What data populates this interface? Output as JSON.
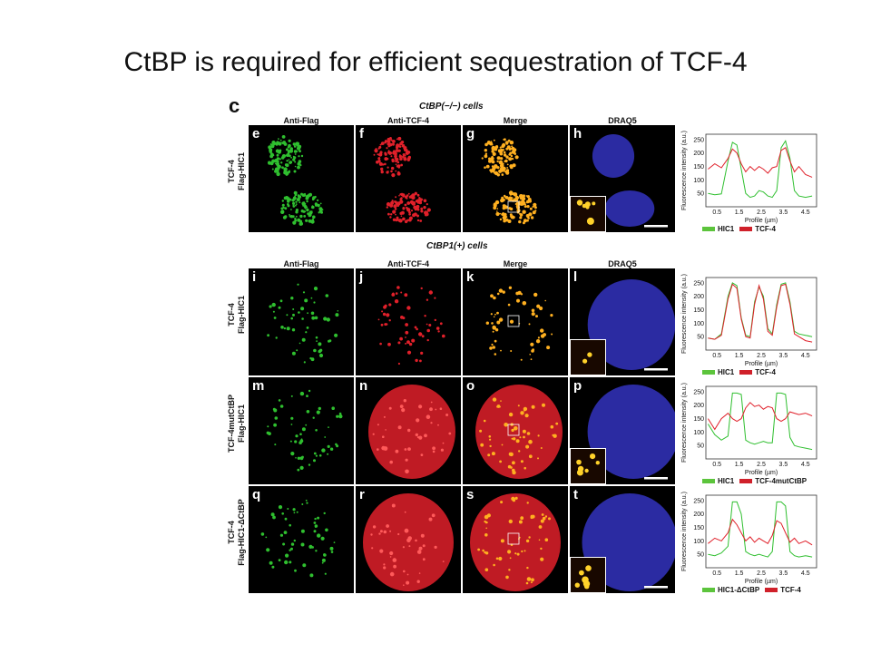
{
  "slide": {
    "title": "CtBP is required for efficient sequestration of TCF-4"
  },
  "figure": {
    "panel_label": "c",
    "sections": [
      {
        "title": "CtBP(−/−) cells",
        "column_headers": [
          "Anti-Flag",
          "Anti-TCF-4",
          "Merge",
          "DRAQ5"
        ]
      },
      {
        "title": "CtBP1(+) cells",
        "column_headers": [
          "Anti-Flag",
          "Anti-TCF-4",
          "Merge",
          "DRAQ5"
        ]
      }
    ],
    "rows": [
      {
        "label_line1": "TCF-4",
        "label_line2": "Flag-HIC1",
        "panels": [
          "e",
          "f",
          "g",
          "h"
        ],
        "legend": [
          "HIC1",
          "TCF-4"
        ]
      },
      {
        "label_line1": "TCF-4",
        "label_line2": "Flag-HIC1",
        "panels": [
          "i",
          "j",
          "k",
          "l"
        ],
        "legend": [
          "HIC1",
          "TCF-4"
        ]
      },
      {
        "label_line1": "TCF-4mutCtBP",
        "label_line2": "Flag-HIC1",
        "panels": [
          "m",
          "n",
          "o",
          "p"
        ],
        "legend": [
          "HIC1",
          "TCF-4mutCtBP"
        ]
      },
      {
        "label_line1": "TCF-4",
        "label_line2": "Flag-HIC1-ΔCtBP",
        "panels": [
          "q",
          "r",
          "s",
          "t"
        ],
        "legend": [
          "HIC1-ΔCtBP",
          "TCF-4"
        ]
      }
    ],
    "plot_axes": {
      "ylabel": "Fluorescence intensity (a.u.)",
      "xlabel": "Profile (µm)",
      "yticks": [
        "250",
        "200",
        "150",
        "100",
        "50"
      ],
      "xticks": [
        "0.5",
        "1.5",
        "2.5",
        "3.5",
        "4.5"
      ]
    },
    "colors": {
      "green_channel": "#2fbf2f",
      "red_channel": "#e0202a",
      "merge_channel": "#ffb020",
      "draq5_channel": "#3a3ad8",
      "green_legend": "#5cc43c",
      "red_legend": "#d0202a"
    }
  },
  "chart_data": [
    {
      "type": "line",
      "xlabel": "Profile (µm)",
      "ylabel": "Fluorescence intensity (a.u.)",
      "xlim": [
        0,
        5
      ],
      "ylim": [
        0,
        270
      ],
      "x": [
        0.1,
        0.4,
        0.7,
        1.0,
        1.2,
        1.4,
        1.6,
        1.8,
        2.0,
        2.2,
        2.4,
        2.6,
        2.8,
        3.0,
        3.2,
        3.4,
        3.6,
        3.8,
        4.0,
        4.2,
        4.5,
        4.8
      ],
      "series": [
        {
          "name": "HIC1",
          "color": "green",
          "values": [
            50,
            45,
            48,
            170,
            240,
            230,
            140,
            50,
            35,
            40,
            60,
            55,
            40,
            35,
            60,
            220,
            245,
            180,
            60,
            40,
            35,
            40
          ]
        },
        {
          "name": "TCF-4",
          "color": "red",
          "values": [
            140,
            160,
            145,
            180,
            215,
            200,
            160,
            130,
            150,
            135,
            150,
            140,
            125,
            145,
            150,
            210,
            220,
            170,
            130,
            150,
            120,
            110
          ]
        }
      ]
    },
    {
      "type": "line",
      "xlabel": "Profile (µm)",
      "ylabel": "Fluorescence intensity (a.u.)",
      "xlim": [
        0,
        5
      ],
      "ylim": [
        0,
        270
      ],
      "x": [
        0.1,
        0.4,
        0.7,
        1.0,
        1.2,
        1.4,
        1.6,
        1.8,
        2.0,
        2.2,
        2.4,
        2.6,
        2.8,
        3.0,
        3.2,
        3.4,
        3.6,
        3.8,
        4.0,
        4.2,
        4.5,
        4.8
      ],
      "series": [
        {
          "name": "HIC1",
          "color": "green",
          "values": [
            45,
            40,
            60,
            200,
            250,
            240,
            120,
            55,
            50,
            180,
            235,
            200,
            80,
            60,
            170,
            245,
            250,
            180,
            70,
            60,
            55,
            50
          ]
        },
        {
          "name": "TCF-4",
          "color": "red",
          "values": [
            45,
            40,
            55,
            190,
            245,
            230,
            115,
            50,
            45,
            170,
            240,
            190,
            70,
            55,
            160,
            240,
            245,
            170,
            60,
            50,
            35,
            30
          ]
        }
      ]
    },
    {
      "type": "line",
      "xlabel": "Profile (µm)",
      "ylabel": "Fluorescence intensity (a.u.)",
      "xlim": [
        0,
        5
      ],
      "ylim": [
        0,
        270
      ],
      "x": [
        0.1,
        0.4,
        0.7,
        1.0,
        1.2,
        1.4,
        1.6,
        1.8,
        2.0,
        2.2,
        2.4,
        2.6,
        2.8,
        3.0,
        3.2,
        3.4,
        3.6,
        3.8,
        4.0,
        4.2,
        4.5,
        4.8
      ],
      "series": [
        {
          "name": "HIC1",
          "color": "green",
          "values": [
            130,
            90,
            70,
            85,
            245,
            245,
            240,
            70,
            60,
            55,
            60,
            65,
            60,
            60,
            245,
            245,
            240,
            80,
            50,
            45,
            40,
            35
          ]
        },
        {
          "name": "TCF-4mutCtBP",
          "color": "red",
          "values": [
            150,
            110,
            150,
            170,
            150,
            140,
            150,
            190,
            210,
            195,
            200,
            185,
            195,
            190,
            150,
            140,
            150,
            175,
            170,
            165,
            170,
            160
          ]
        }
      ]
    },
    {
      "type": "line",
      "xlabel": "Profile (µm)",
      "ylabel": "Fluorescence intensity (a.u.)",
      "xlim": [
        0,
        5
      ],
      "ylim": [
        0,
        270
      ],
      "x": [
        0.1,
        0.4,
        0.7,
        1.0,
        1.2,
        1.4,
        1.6,
        1.8,
        2.0,
        2.2,
        2.4,
        2.6,
        2.8,
        3.0,
        3.2,
        3.4,
        3.6,
        3.8,
        4.0,
        4.2,
        4.5,
        4.8
      ],
      "series": [
        {
          "name": "HIC1-ΔCtBP",
          "color": "green",
          "values": [
            50,
            45,
            55,
            80,
            245,
            245,
            200,
            60,
            50,
            45,
            50,
            45,
            40,
            60,
            245,
            245,
            230,
            60,
            45,
            40,
            45,
            40
          ]
        },
        {
          "name": "TCF-4",
          "color": "red",
          "values": [
            90,
            110,
            100,
            130,
            180,
            160,
            130,
            100,
            115,
            95,
            110,
            100,
            90,
            120,
            175,
            165,
            130,
            95,
            110,
            90,
            100,
            85
          ]
        }
      ]
    }
  ]
}
